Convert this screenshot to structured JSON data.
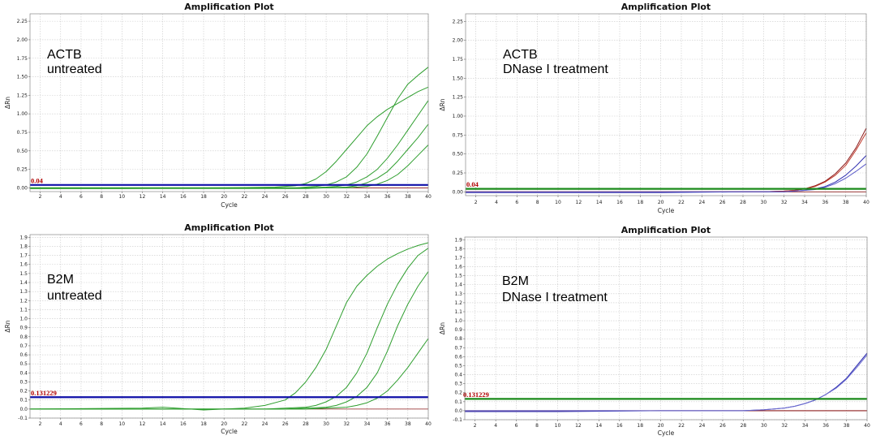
{
  "chart_data": [
    {
      "type": "line",
      "title": "Amplification Plot",
      "xlabel": "Cycle",
      "ylabel": "ΔRn",
      "annotation": [
        "ACTB",
        "untreated"
      ],
      "xlim": [
        1,
        40
      ],
      "ylim": [
        -0.05,
        2.35
      ],
      "xticks": [
        "2",
        "4",
        "6",
        "8",
        "10",
        "12",
        "14",
        "16",
        "18",
        "20",
        "22",
        "24",
        "26",
        "28",
        "30",
        "32",
        "34",
        "36",
        "38",
        "40"
      ],
      "yticks": [
        "0.00",
        "0.25",
        "0.50",
        "0.75",
        "1.00",
        "1.25",
        "1.50",
        "1.75",
        "2.00",
        "2.25"
      ],
      "threshold": {
        "value": 0.04,
        "label": "0.04",
        "color": "#1010a8"
      },
      "grid": true,
      "series": [
        {
          "color": "#2e9e2e",
          "x": [
            1,
            10,
            20,
            25,
            27,
            28,
            29,
            30,
            31,
            32,
            33,
            34,
            35,
            36,
            37,
            38,
            39,
            40
          ],
          "values": [
            0.0,
            0.0,
            0.0,
            0.01,
            0.03,
            0.06,
            0.12,
            0.22,
            0.36,
            0.52,
            0.68,
            0.84,
            0.96,
            1.06,
            1.14,
            1.22,
            1.3,
            1.36
          ]
        },
        {
          "color": "#2e9e2e",
          "x": [
            1,
            10,
            20,
            25,
            27,
            28,
            29,
            30,
            31,
            32,
            33,
            34,
            35,
            36,
            37,
            38,
            39,
            40
          ],
          "values": [
            -0.01,
            -0.01,
            0.0,
            0.0,
            0.0,
            0.01,
            0.02,
            0.04,
            0.08,
            0.15,
            0.28,
            0.46,
            0.7,
            0.95,
            1.2,
            1.4,
            1.52,
            1.63
          ]
        },
        {
          "color": "#2e9e2e",
          "x": [
            1,
            10,
            20,
            25,
            28,
            30,
            31,
            32,
            33,
            34,
            35,
            36,
            37,
            38,
            39,
            40
          ],
          "values": [
            0.0,
            0.0,
            0.0,
            0.0,
            0.0,
            0.01,
            0.02,
            0.04,
            0.08,
            0.15,
            0.25,
            0.4,
            0.58,
            0.78,
            0.98,
            1.18
          ]
        },
        {
          "color": "#2e9e2e",
          "x": [
            1,
            10,
            20,
            25,
            28,
            30,
            32,
            33,
            34,
            35,
            36,
            37,
            38,
            39,
            40
          ],
          "values": [
            -0.01,
            -0.01,
            -0.01,
            -0.01,
            -0.01,
            0.0,
            0.01,
            0.03,
            0.07,
            0.13,
            0.22,
            0.36,
            0.52,
            0.68,
            0.86
          ]
        },
        {
          "color": "#2e9e2e",
          "x": [
            1,
            10,
            20,
            25,
            28,
            30,
            32,
            34,
            35,
            36,
            37,
            38,
            39,
            40
          ],
          "values": [
            0.0,
            0.0,
            0.0,
            0.0,
            0.0,
            0.0,
            0.0,
            0.02,
            0.05,
            0.1,
            0.18,
            0.3,
            0.44,
            0.58
          ]
        }
      ]
    },
    {
      "type": "line",
      "title": "Amplification Plot",
      "xlabel": "Cycle",
      "ylabel": "ΔRn",
      "annotation": [
        "ACTB",
        "DNase I treatment"
      ],
      "xlim": [
        1,
        40
      ],
      "ylim": [
        -0.05,
        2.35
      ],
      "xticks": [
        "2",
        "4",
        "6",
        "8",
        "10",
        "12",
        "14",
        "16",
        "18",
        "20",
        "22",
        "24",
        "26",
        "28",
        "30",
        "32",
        "34",
        "36",
        "38",
        "40"
      ],
      "yticks": [
        "0.00",
        "0.25",
        "0.50",
        "0.75",
        "1.00",
        "1.25",
        "1.50",
        "1.75",
        "2.00",
        "2.25"
      ],
      "threshold": {
        "value": 0.04,
        "label": "0.04",
        "color": "#1a8a1a"
      },
      "grid": true,
      "series": [
        {
          "color": "#8b1a1a",
          "x": [
            1,
            10,
            20,
            28,
            30,
            32,
            33,
            34,
            35,
            36,
            37,
            38,
            39,
            40
          ],
          "values": [
            0.0,
            0.0,
            0.0,
            0.0,
            0.0,
            0.01,
            0.02,
            0.04,
            0.08,
            0.14,
            0.24,
            0.38,
            0.58,
            0.84
          ]
        },
        {
          "color": "#c0392b",
          "x": [
            1,
            10,
            20,
            28,
            30,
            32,
            33,
            34,
            35,
            36,
            37,
            38,
            39,
            40
          ],
          "values": [
            0.0,
            0.0,
            0.0,
            0.0,
            0.0,
            0.01,
            0.02,
            0.04,
            0.07,
            0.13,
            0.22,
            0.35,
            0.55,
            0.78
          ]
        },
        {
          "color": "#3030b0",
          "x": [
            1,
            10,
            20,
            28,
            30,
            32,
            34,
            35,
            36,
            37,
            38,
            39,
            40
          ],
          "values": [
            -0.01,
            -0.01,
            -0.01,
            0.0,
            0.0,
            0.0,
            0.02,
            0.04,
            0.07,
            0.13,
            0.22,
            0.34,
            0.48
          ]
        },
        {
          "color": "#5a5ac8",
          "x": [
            1,
            10,
            20,
            28,
            30,
            32,
            34,
            35,
            36,
            37,
            38,
            39,
            40
          ],
          "values": [
            0.0,
            0.0,
            0.0,
            0.0,
            0.0,
            0.0,
            0.02,
            0.03,
            0.06,
            0.11,
            0.18,
            0.27,
            0.37
          ]
        }
      ]
    },
    {
      "type": "line",
      "title": "Amplification Plot",
      "xlabel": "Cycle",
      "ylabel": "ΔRn",
      "annotation": [
        "B2M",
        "untreated"
      ],
      "xlim": [
        1,
        40
      ],
      "ylim": [
        -0.1,
        1.93
      ],
      "xticks": [
        "2",
        "4",
        "6",
        "8",
        "10",
        "12",
        "14",
        "16",
        "18",
        "20",
        "22",
        "24",
        "26",
        "28",
        "30",
        "32",
        "34",
        "36",
        "38",
        "40"
      ],
      "yticks": [
        "-0.1",
        "0.0",
        "0.1",
        "0.2",
        "0.3",
        "0.4",
        "0.5",
        "0.6",
        "0.7",
        "0.8",
        "0.9",
        "1.0",
        "1.1",
        "1.2",
        "1.3",
        "1.4",
        "1.5",
        "1.6",
        "1.7",
        "1.8",
        "1.9"
      ],
      "threshold": {
        "value": 0.131229,
        "label": "0.131229",
        "color": "#1010a8"
      },
      "grid": true,
      "series": [
        {
          "color": "#2e9e2e",
          "x": [
            1,
            12,
            14,
            18,
            20,
            22,
            24,
            26,
            27,
            28,
            29,
            30,
            31,
            32,
            33,
            34,
            35,
            36,
            37,
            38,
            39,
            40
          ],
          "values": [
            0.0,
            0.01,
            0.02,
            -0.01,
            0.0,
            0.01,
            0.04,
            0.1,
            0.18,
            0.3,
            0.46,
            0.66,
            0.92,
            1.18,
            1.36,
            1.48,
            1.58,
            1.66,
            1.72,
            1.77,
            1.81,
            1.84
          ]
        },
        {
          "color": "#2e9e2e",
          "x": [
            1,
            20,
            24,
            26,
            28,
            29,
            30,
            31,
            32,
            33,
            34,
            35,
            36,
            37,
            38,
            39,
            40
          ],
          "values": [
            0.0,
            0.0,
            0.0,
            0.01,
            0.02,
            0.04,
            0.08,
            0.14,
            0.24,
            0.4,
            0.62,
            0.9,
            1.16,
            1.38,
            1.56,
            1.7,
            1.78
          ]
        },
        {
          "color": "#2e9e2e",
          "x": [
            1,
            20,
            26,
            28,
            30,
            31,
            32,
            33,
            34,
            35,
            36,
            37,
            38,
            39,
            40
          ],
          "values": [
            0.0,
            0.0,
            0.0,
            0.01,
            0.02,
            0.04,
            0.08,
            0.14,
            0.24,
            0.4,
            0.64,
            0.92,
            1.16,
            1.36,
            1.52
          ]
        },
        {
          "color": "#2e9e2e",
          "x": [
            1,
            20,
            26,
            28,
            30,
            32,
            33,
            34,
            35,
            36,
            37,
            38,
            39,
            40
          ],
          "values": [
            0.0,
            0.0,
            0.0,
            0.0,
            0.01,
            0.02,
            0.04,
            0.07,
            0.12,
            0.2,
            0.32,
            0.46,
            0.62,
            0.78
          ]
        }
      ]
    },
    {
      "type": "line",
      "title": "Amplification Plot",
      "xlabel": "Cycle",
      "ylabel": "ΔRn",
      "annotation": [
        "B2M",
        "DNase I treatment"
      ],
      "xlim": [
        1,
        40
      ],
      "ylim": [
        -0.1,
        1.93
      ],
      "xticks": [
        "2",
        "4",
        "6",
        "8",
        "10",
        "12",
        "14",
        "16",
        "18",
        "20",
        "22",
        "24",
        "26",
        "28",
        "30",
        "32",
        "34",
        "36",
        "38",
        "40"
      ],
      "yticks": [
        "-0.1",
        "0.0",
        "0.1",
        "0.2",
        "0.3",
        "0.4",
        "0.5",
        "0.6",
        "0.7",
        "0.8",
        "0.9",
        "1.0",
        "1.1",
        "1.2",
        "1.3",
        "1.4",
        "1.5",
        "1.6",
        "1.7",
        "1.8",
        "1.9"
      ],
      "threshold": {
        "value": 0.131229,
        "label": "0.131229",
        "color": "#1a8a1a"
      },
      "grid": true,
      "series": [
        {
          "color": "#8b1a1a",
          "x": [
            1,
            40
          ],
          "values": [
            0.0,
            0.0
          ]
        },
        {
          "color": "#3030b0",
          "x": [
            1,
            10,
            20,
            26,
            28,
            30,
            31,
            32,
            33,
            34,
            35,
            36,
            37,
            38,
            39,
            40
          ],
          "values": [
            -0.01,
            -0.01,
            0.0,
            0.0,
            0.0,
            0.01,
            0.02,
            0.03,
            0.05,
            0.08,
            0.12,
            0.18,
            0.26,
            0.36,
            0.5,
            0.64
          ]
        },
        {
          "color": "#6a6ad0",
          "x": [
            1,
            10,
            20,
            26,
            28,
            30,
            31,
            32,
            33,
            34,
            35,
            36,
            37,
            38,
            39,
            40
          ],
          "values": [
            0.0,
            0.0,
            0.0,
            0.0,
            0.0,
            0.01,
            0.02,
            0.03,
            0.05,
            0.08,
            0.12,
            0.18,
            0.25,
            0.35,
            0.48,
            0.62
          ]
        }
      ]
    }
  ]
}
